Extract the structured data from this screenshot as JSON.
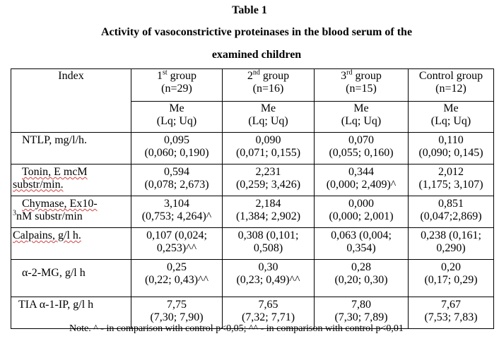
{
  "table_label": "Table 1",
  "caption_line1": "Activity of vasoconstrictive proteinases in the blood serum of the",
  "caption_line2": "examined children",
  "header": {
    "index": "Index",
    "groups": [
      {
        "name_pre": "1",
        "sup": "st",
        "name_post": " group",
        "n": "(n=29)"
      },
      {
        "name_pre": "2",
        "sup": "nd",
        "name_post": " group",
        "n": "(n=16)"
      },
      {
        "name_pre": "3",
        "sup": "rd",
        "name_post": " group",
        "n": "(n=15)"
      },
      {
        "name_pre": "Control group",
        "sup": "",
        "name_post": "",
        "n": "(n=12)"
      }
    ],
    "stat_line1": "Me",
    "stat_line2": "(Lq; Uq)"
  },
  "rows": [
    {
      "index": "NTLP, mg/l/h.",
      "cells": [
        [
          "0,095",
          "(0,060; 0,190)"
        ],
        [
          "0,090",
          "(0,071; 0,155)"
        ],
        [
          "0,070",
          "(0,055; 0,160)"
        ],
        [
          "0,110",
          "(0,090; 0,145)"
        ]
      ]
    },
    {
      "index_a": "Tonin, E mcM",
      "index_b": "substr/min.",
      "cells": [
        [
          "0,594",
          "(0,078; 2,673)"
        ],
        [
          "2,231",
          "(0,259; 3,426)"
        ],
        [
          "0,344",
          "(0,000; 2,409)^"
        ],
        [
          "2,012",
          "(1,175; 3,107)"
        ]
      ]
    },
    {
      "index_a": "Chymase, Ex10-",
      "index_sup": "3",
      "index_b": "nM substr/min",
      "cells": [
        [
          "3,104",
          "(0,753; 4,264)^"
        ],
        [
          "2,184",
          "(1,384; 2,902)"
        ],
        [
          "0,000",
          "(0,000; 2,001)"
        ],
        [
          "0,851",
          "(0,047;2,869)"
        ]
      ]
    },
    {
      "index": "Calpains, g/l h.",
      "cells": [
        [
          "0,107 (0,024;",
          "0,253)^^"
        ],
        [
          "0,308 (0,101;",
          "0,508)"
        ],
        [
          "0,063 (0,004;",
          "0,354)"
        ],
        [
          "0,238 (0,161;",
          "0,290)"
        ]
      ]
    },
    {
      "index": "α-2-MG, g/l h",
      "cells": [
        [
          "0,25",
          "(0,22; 0,43)^^"
        ],
        [
          "0,30",
          "(0,23; 0,49)^^"
        ],
        [
          "0,28",
          "(0,20; 0,30)"
        ],
        [
          "0,20",
          "(0,17; 0,29)"
        ]
      ]
    },
    {
      "index": "TIA α-1-IP, g/l h",
      "cells": [
        [
          "7,75",
          "(7,30; 7,90)"
        ],
        [
          "7,65",
          "(7,32; 7,71)"
        ],
        [
          "7,80",
          "(7,30; 7,89)"
        ],
        [
          "7,67",
          "(7,53; 7,83)"
        ]
      ]
    }
  ],
  "note": "Note. ^ - in comparison with control p<0,05; ^^ - in comparison with control p<0,01"
}
